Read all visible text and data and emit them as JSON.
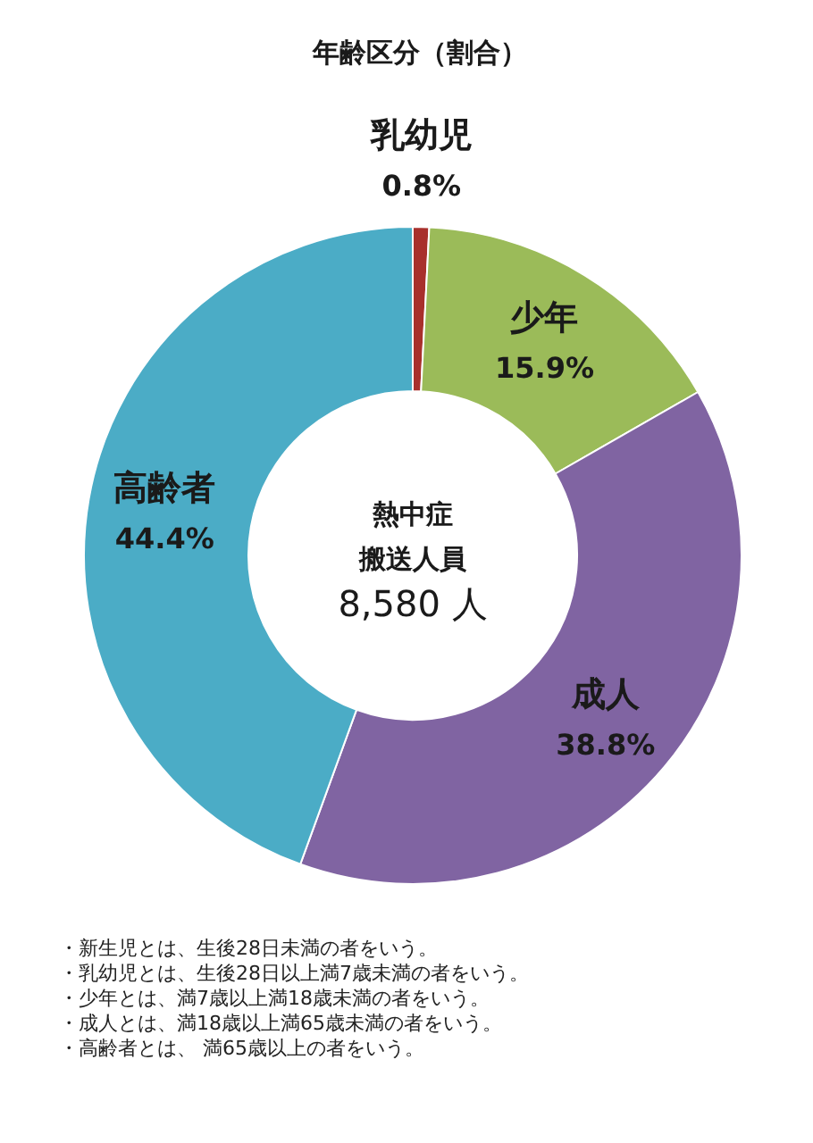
{
  "chart_data": {
    "type": "donut",
    "title": "年齢区分（割合）",
    "categories": [
      "乳幼児",
      "少年",
      "成人",
      "高齢者"
    ],
    "values": [
      0.8,
      15.9,
      38.8,
      44.4
    ],
    "colors": [
      "#a8302c",
      "#9bbb59",
      "#8064a2",
      "#4bacc6"
    ],
    "value_labels": [
      "0.8%",
      "15.9%",
      "38.8%",
      "44.4%"
    ],
    "legend": false,
    "annotations": [
      "熱中症",
      "搬送人員",
      "8,580 人",
      "・新生児とは、生後28日未満の者をいう。",
      "・乳幼児とは、生後28日以上満7歳未満の者をいう。",
      "・少年とは、満7歳以上満18歳未満の者をいう。",
      "・成人とは、満18歳以上満65歳未満の者をいう。",
      "・高齢者とは、 満65歳以上の者をいう。"
    ]
  }
}
